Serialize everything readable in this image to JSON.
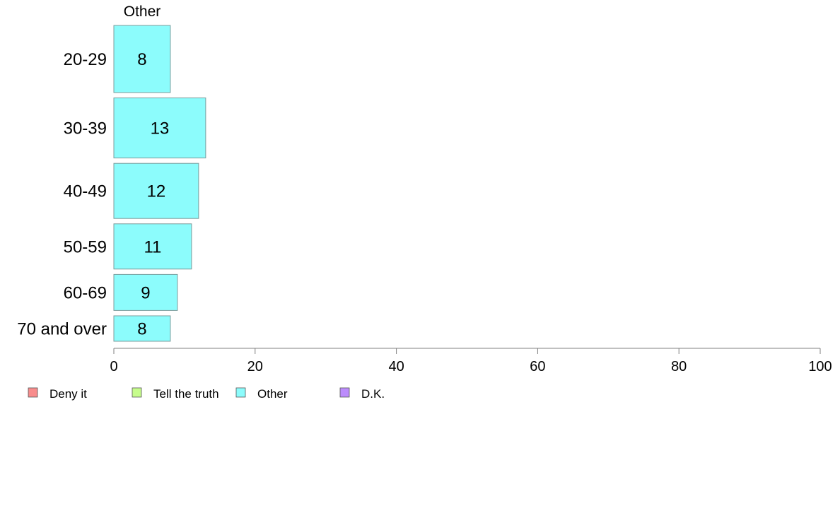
{
  "chart_data": {
    "type": "bar",
    "orientation": "horizontal",
    "panel_title": "Other",
    "categories": [
      "20-29",
      "30-39",
      "40-49",
      "50-59",
      "60-69",
      "70 and over"
    ],
    "relative_bar_thickness": [
      0.95,
      0.85,
      0.78,
      0.64,
      0.51,
      0.36
    ],
    "series": [
      {
        "name": "Other",
        "values": [
          8,
          13,
          12,
          11,
          9,
          8
        ],
        "color": "#8cfcfc"
      }
    ],
    "xlim": [
      0,
      100
    ],
    "xticks": [
      0,
      20,
      40,
      60,
      80,
      100
    ],
    "legend": {
      "position": "bottom-left",
      "items": [
        {
          "label": "Deny it",
          "color": "#f88c8c"
        },
        {
          "label": "Tell the truth",
          "color": "#c6fc8c"
        },
        {
          "label": "Other",
          "color": "#8cfcfc"
        },
        {
          "label": "D.K.",
          "color": "#bc8cfc"
        }
      ]
    },
    "grid": false
  }
}
